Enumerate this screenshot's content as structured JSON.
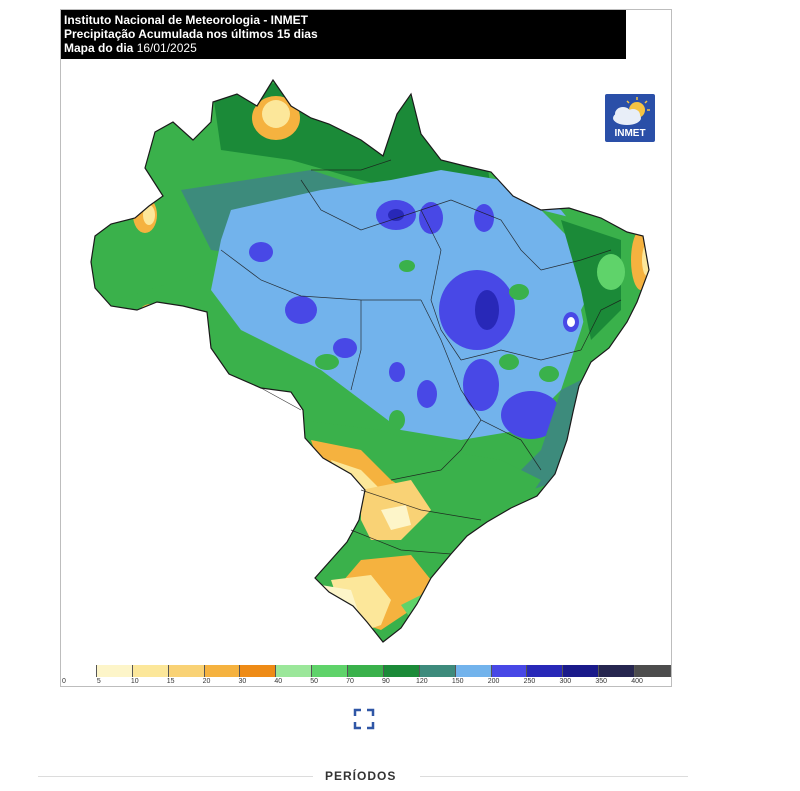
{
  "header": {
    "line1": "Instituto Nacional de Meteorologia - INMET",
    "line2": "Precipitação Acumulada nos últimos 15 dias",
    "line3_prefix": "Mapa do dia ",
    "line3_date": "16/01/2025"
  },
  "logo": {
    "text": "INMET",
    "icon": "sun-cloud-icon",
    "color": "#2a4fa8"
  },
  "legend": {
    "ticks": [
      "0",
      "5",
      "10",
      "15",
      "20",
      "30",
      "40",
      "50",
      "70",
      "90",
      "120",
      "150",
      "200",
      "250",
      "300",
      "350",
      "400"
    ],
    "colors": [
      "#ffffff",
      "#fdf5c9",
      "#fce79a",
      "#f9d275",
      "#f5b23f",
      "#ee8b16",
      "#9be79a",
      "#5fd36a",
      "#3ab14b",
      "#1b8a38",
      "#3d8b7c",
      "#72b3ec",
      "#4848e6",
      "#2828b8",
      "#1a1a8a",
      "#26264f",
      "#4c4c4c"
    ]
  },
  "map": {
    "border_color": "#1a1a1a",
    "background": "#ffffff"
  },
  "expand": {
    "icon": "expand-icon"
  },
  "periods": {
    "label": "PERÍODOS"
  }
}
